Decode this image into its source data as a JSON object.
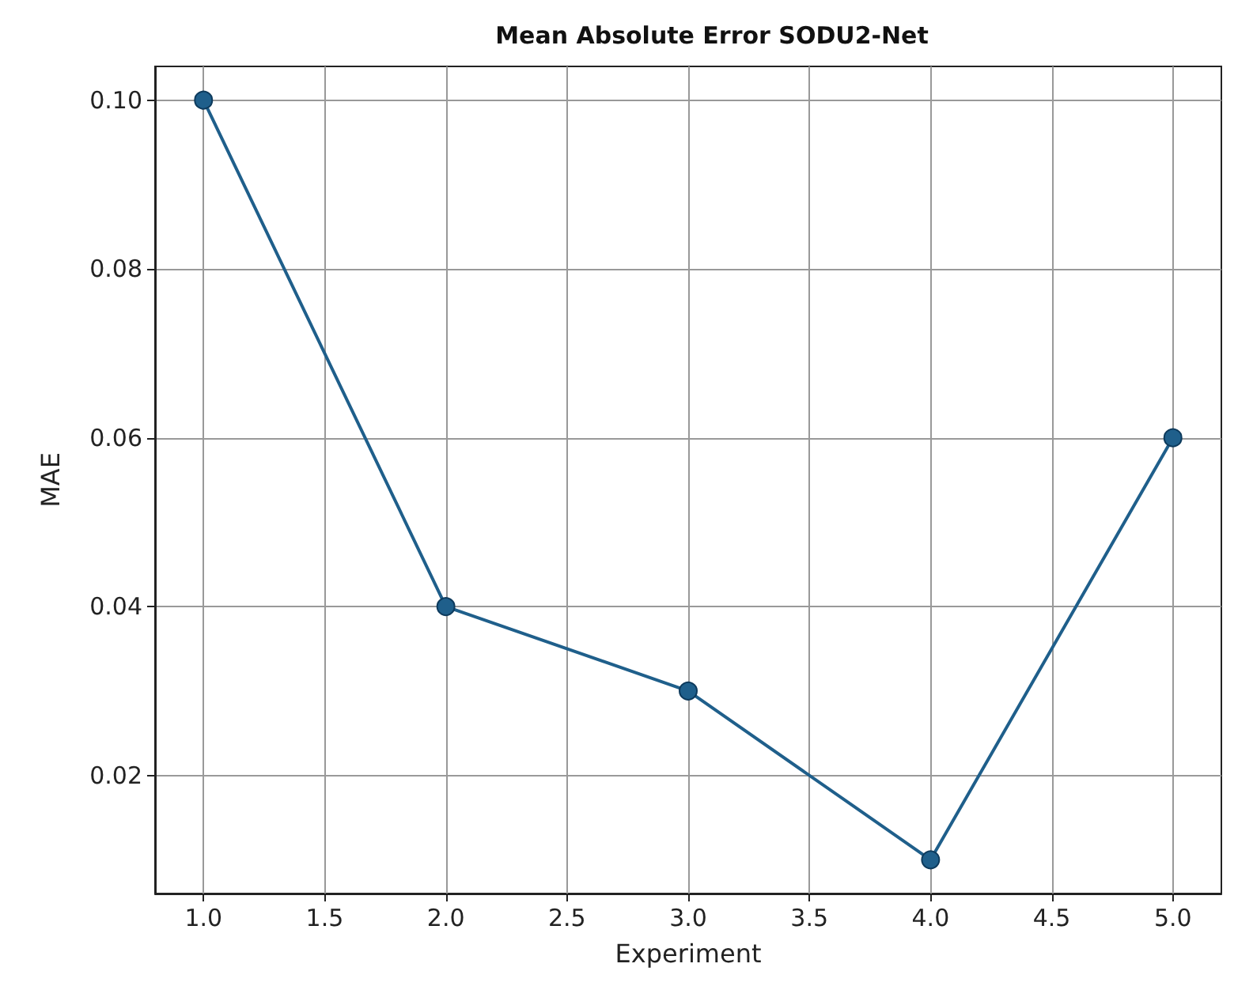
{
  "chart_data": {
    "type": "line",
    "title": "Mean Absolute Error SODU2-Net",
    "xlabel": "Experiment",
    "ylabel": "MAE",
    "x": [
      1,
      2,
      3,
      4,
      5
    ],
    "series": [
      {
        "color": "#1f5f8b",
        "values": [
          0.1,
          0.04,
          0.03,
          0.01,
          0.06
        ]
      }
    ],
    "xlim": [
      0.8,
      5.2
    ],
    "xticks": [
      {
        "value": 1,
        "label": "1.0"
      },
      {
        "value": 1.5,
        "label": "1.5"
      },
      {
        "value": 2,
        "label": "2.0"
      },
      {
        "value": 2.5,
        "label": "2.5"
      },
      {
        "value": 3,
        "label": "3.0"
      },
      {
        "value": 3.5,
        "label": "3.5"
      },
      {
        "value": 4,
        "label": "4.0"
      },
      {
        "value": 4.5,
        "label": "4.5"
      },
      {
        "value": 5,
        "label": "5.0"
      }
    ],
    "ylim": [
      0.006,
      0.104
    ],
    "yticks": [
      {
        "value": 0.02,
        "label": "0.02"
      },
      {
        "value": 0.04,
        "label": "0.04"
      },
      {
        "value": 0.06,
        "label": "0.06"
      },
      {
        "value": 0.08,
        "label": "0.08"
      },
      {
        "value": 0.1,
        "label": "0.10"
      }
    ],
    "grid": true,
    "marker": "circle",
    "line_style": "solid"
  }
}
